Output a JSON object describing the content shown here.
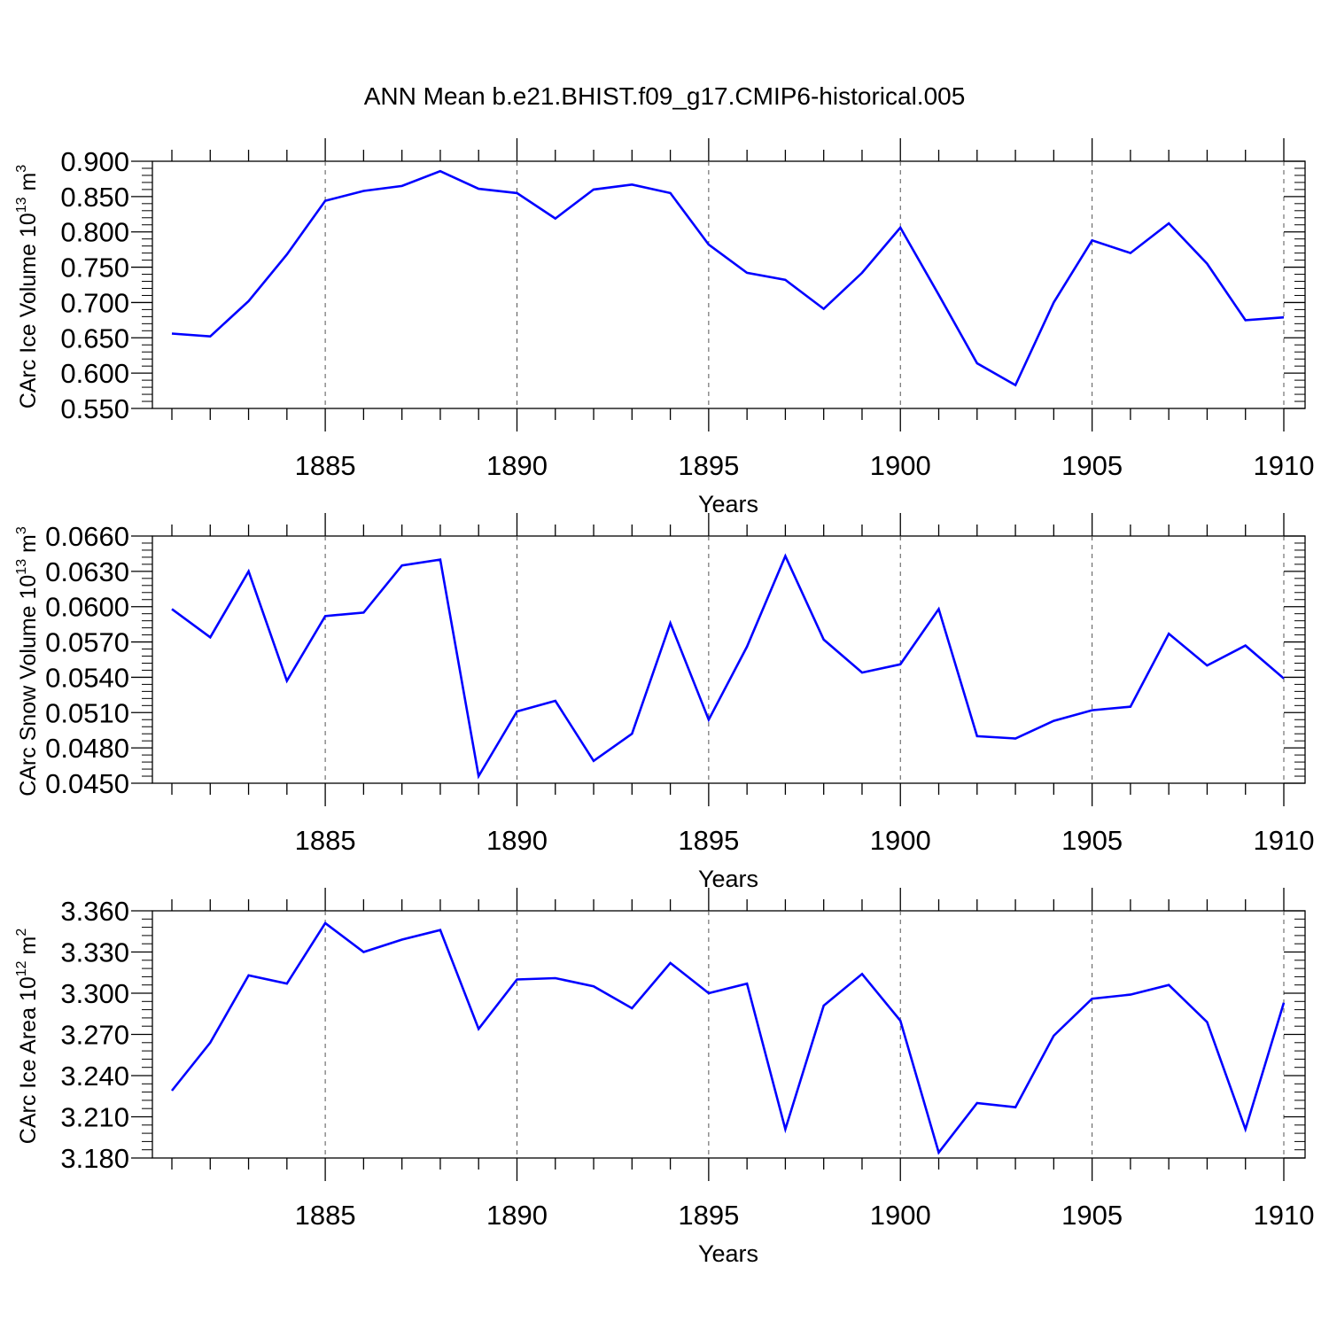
{
  "title": "ANN Mean b.e21.BHIST.f09_g17.CMIP6-historical.005",
  "colors": {
    "line": "#0000ff",
    "axis": "#000000",
    "grid": "#555555"
  },
  "chart_data": [
    {
      "type": "line",
      "title": "",
      "xlabel": "Years",
      "ylabel": {
        "base": "CArc Ice Volume 10",
        "exp": "13",
        "unit": " m",
        "unit_exp": "3"
      },
      "xlim": [
        1881,
        1910
      ],
      "ylim": [
        0.55,
        0.9
      ],
      "x_ticks": [
        "1885",
        "1890",
        "1895",
        "1900",
        "1905",
        "1910"
      ],
      "y_ticks": [
        "0.900",
        "0.850",
        "0.800",
        "0.750",
        "0.700",
        "0.650",
        "0.600",
        "0.550"
      ],
      "grid": "vertical dashed at major x ticks",
      "series": [
        {
          "x": [
            1881,
            1882,
            1883,
            1884,
            1885,
            1886,
            1887,
            1888,
            1889,
            1890,
            1891,
            1892,
            1893,
            1894,
            1895,
            1896,
            1897,
            1898,
            1899,
            1900,
            1901,
            1902,
            1903,
            1904,
            1905,
            1906,
            1907,
            1908,
            1909,
            1910
          ],
          "values": [
            0.656,
            0.652,
            0.702,
            0.768,
            0.844,
            0.858,
            0.865,
            0.886,
            0.861,
            0.855,
            0.819,
            0.86,
            0.867,
            0.855,
            0.782,
            0.742,
            0.732,
            0.691,
            0.742,
            0.806,
            0.711,
            0.614,
            0.583,
            0.7,
            0.788,
            0.77,
            0.812,
            0.755,
            0.675,
            0.679
          ]
        }
      ]
    },
    {
      "type": "line",
      "title": "",
      "xlabel": "Years",
      "ylabel": {
        "base": "CArc Snow Volume 10",
        "exp": "13",
        "unit": " m",
        "unit_exp": "3"
      },
      "xlim": [
        1881,
        1910
      ],
      "ylim": [
        0.045,
        0.066
      ],
      "x_ticks": [
        "1885",
        "1890",
        "1895",
        "1900",
        "1905",
        "1910"
      ],
      "y_ticks": [
        "0.0660",
        "0.0630",
        "0.0600",
        "0.0570",
        "0.0540",
        "0.0510",
        "0.0480",
        "0.0450"
      ],
      "grid": "vertical dashed at major x ticks",
      "series": [
        {
          "x": [
            1881,
            1882,
            1883,
            1884,
            1885,
            1886,
            1887,
            1888,
            1889,
            1890,
            1891,
            1892,
            1893,
            1894,
            1895,
            1896,
            1897,
            1898,
            1899,
            1900,
            1901,
            1902,
            1903,
            1904,
            1905,
            1906,
            1907,
            1908,
            1909,
            1910
          ],
          "values": [
            0.0598,
            0.0574,
            0.063,
            0.0537,
            0.0592,
            0.0595,
            0.0635,
            0.064,
            0.0456,
            0.0511,
            0.052,
            0.0469,
            0.0492,
            0.0586,
            0.0504,
            0.0566,
            0.0643,
            0.0572,
            0.0544,
            0.0551,
            0.0598,
            0.049,
            0.0488,
            0.0503,
            0.0512,
            0.0515,
            0.0577,
            0.055,
            0.0567,
            0.0539
          ]
        }
      ]
    },
    {
      "type": "line",
      "title": "",
      "xlabel": "Years",
      "ylabel": {
        "base": "CArc Ice Area 10",
        "exp": "12",
        "unit": " m",
        "unit_exp": "2"
      },
      "xlim": [
        1881,
        1910
      ],
      "ylim": [
        3.18,
        3.36
      ],
      "x_ticks": [
        "1885",
        "1890",
        "1895",
        "1900",
        "1905",
        "1910"
      ],
      "y_ticks": [
        "3.360",
        "3.330",
        "3.300",
        "3.270",
        "3.240",
        "3.210",
        "3.180"
      ],
      "grid": "vertical dashed at major x ticks",
      "series": [
        {
          "x": [
            1881,
            1882,
            1883,
            1884,
            1885,
            1886,
            1887,
            1888,
            1889,
            1890,
            1891,
            1892,
            1893,
            1894,
            1895,
            1896,
            1897,
            1898,
            1899,
            1900,
            1901,
            1902,
            1903,
            1904,
            1905,
            1906,
            1907,
            1908,
            1909,
            1910
          ],
          "values": [
            3.229,
            3.264,
            3.313,
            3.307,
            3.351,
            3.33,
            3.339,
            3.346,
            3.274,
            3.31,
            3.311,
            3.305,
            3.289,
            3.322,
            3.3,
            3.307,
            3.201,
            3.291,
            3.314,
            3.28,
            3.184,
            3.22,
            3.217,
            3.269,
            3.296,
            3.299,
            3.306,
            3.279,
            3.201,
            3.293
          ]
        }
      ]
    }
  ]
}
